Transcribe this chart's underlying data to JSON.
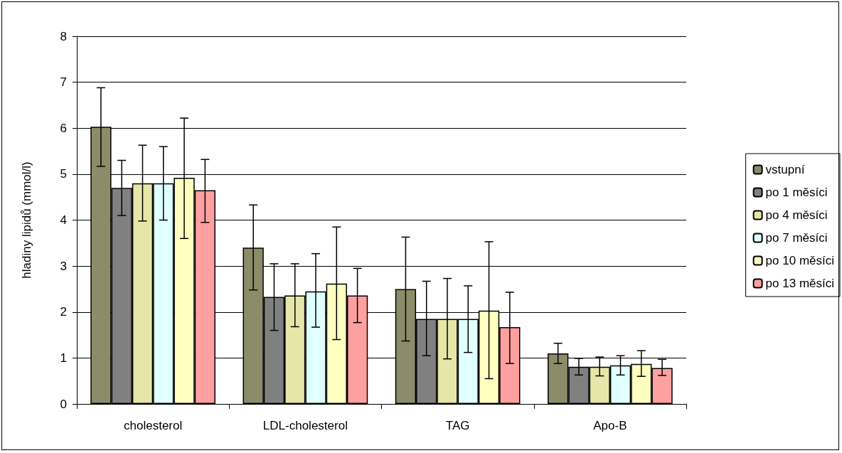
{
  "chart_data": {
    "type": "bar",
    "ylabel": "hladiny lipidů (mmol/l)",
    "categories": [
      "cholesterol",
      "LDL-cholesterol",
      "TAG",
      "Apo-B"
    ],
    "series": [
      {
        "name": "vstupní",
        "color": "#8c8c6a",
        "values": [
          6.03,
          3.4,
          2.5,
          1.1
        ],
        "errors": [
          [
            5.17,
            6.88
          ],
          [
            2.48,
            4.33
          ],
          [
            1.37,
            3.63
          ],
          [
            0.88,
            1.32
          ]
        ]
      },
      {
        "name": "po 1 měsíci",
        "color": "#808080",
        "values": [
          4.7,
          2.33,
          1.85,
          0.81
        ],
        "errors": [
          [
            4.1,
            5.3
          ],
          [
            1.6,
            3.05
          ],
          [
            1.05,
            2.67
          ],
          [
            0.63,
            0.99
          ]
        ]
      },
      {
        "name": "po 4 měsíci",
        "color": "#e6e6a8",
        "values": [
          4.8,
          2.36,
          1.85,
          0.81
        ],
        "errors": [
          [
            3.98,
            5.63
          ],
          [
            1.68,
            3.05
          ],
          [
            0.98,
            2.73
          ],
          [
            0.61,
            1.02
          ]
        ]
      },
      {
        "name": "po 7 měsíci",
        "color": "#e0ffff",
        "values": [
          4.8,
          2.45,
          1.85,
          0.84
        ],
        "errors": [
          [
            4.0,
            5.6
          ],
          [
            1.67,
            3.27
          ],
          [
            1.12,
            2.57
          ],
          [
            0.63,
            1.05
          ]
        ]
      },
      {
        "name": "po 10 měsíci",
        "color": "#ffffc0",
        "values": [
          4.92,
          2.62,
          2.03,
          0.87
        ],
        "errors": [
          [
            3.6,
            6.22
          ],
          [
            1.4,
            3.85
          ],
          [
            0.55,
            3.53
          ],
          [
            0.6,
            1.16
          ]
        ]
      },
      {
        "name": "po 13 měsíci",
        "color": "#ffa0a0",
        "values": [
          4.65,
          2.36,
          1.67,
          0.78
        ],
        "errors": [
          [
            3.95,
            5.32
          ],
          [
            1.77,
            2.95
          ],
          [
            0.88,
            2.43
          ],
          [
            0.62,
            0.97
          ]
        ]
      }
    ],
    "ylim": [
      0,
      8
    ],
    "yticks": [
      0,
      1,
      2,
      3,
      4,
      5,
      6,
      7,
      8
    ],
    "grid": "y",
    "legend": "right"
  }
}
